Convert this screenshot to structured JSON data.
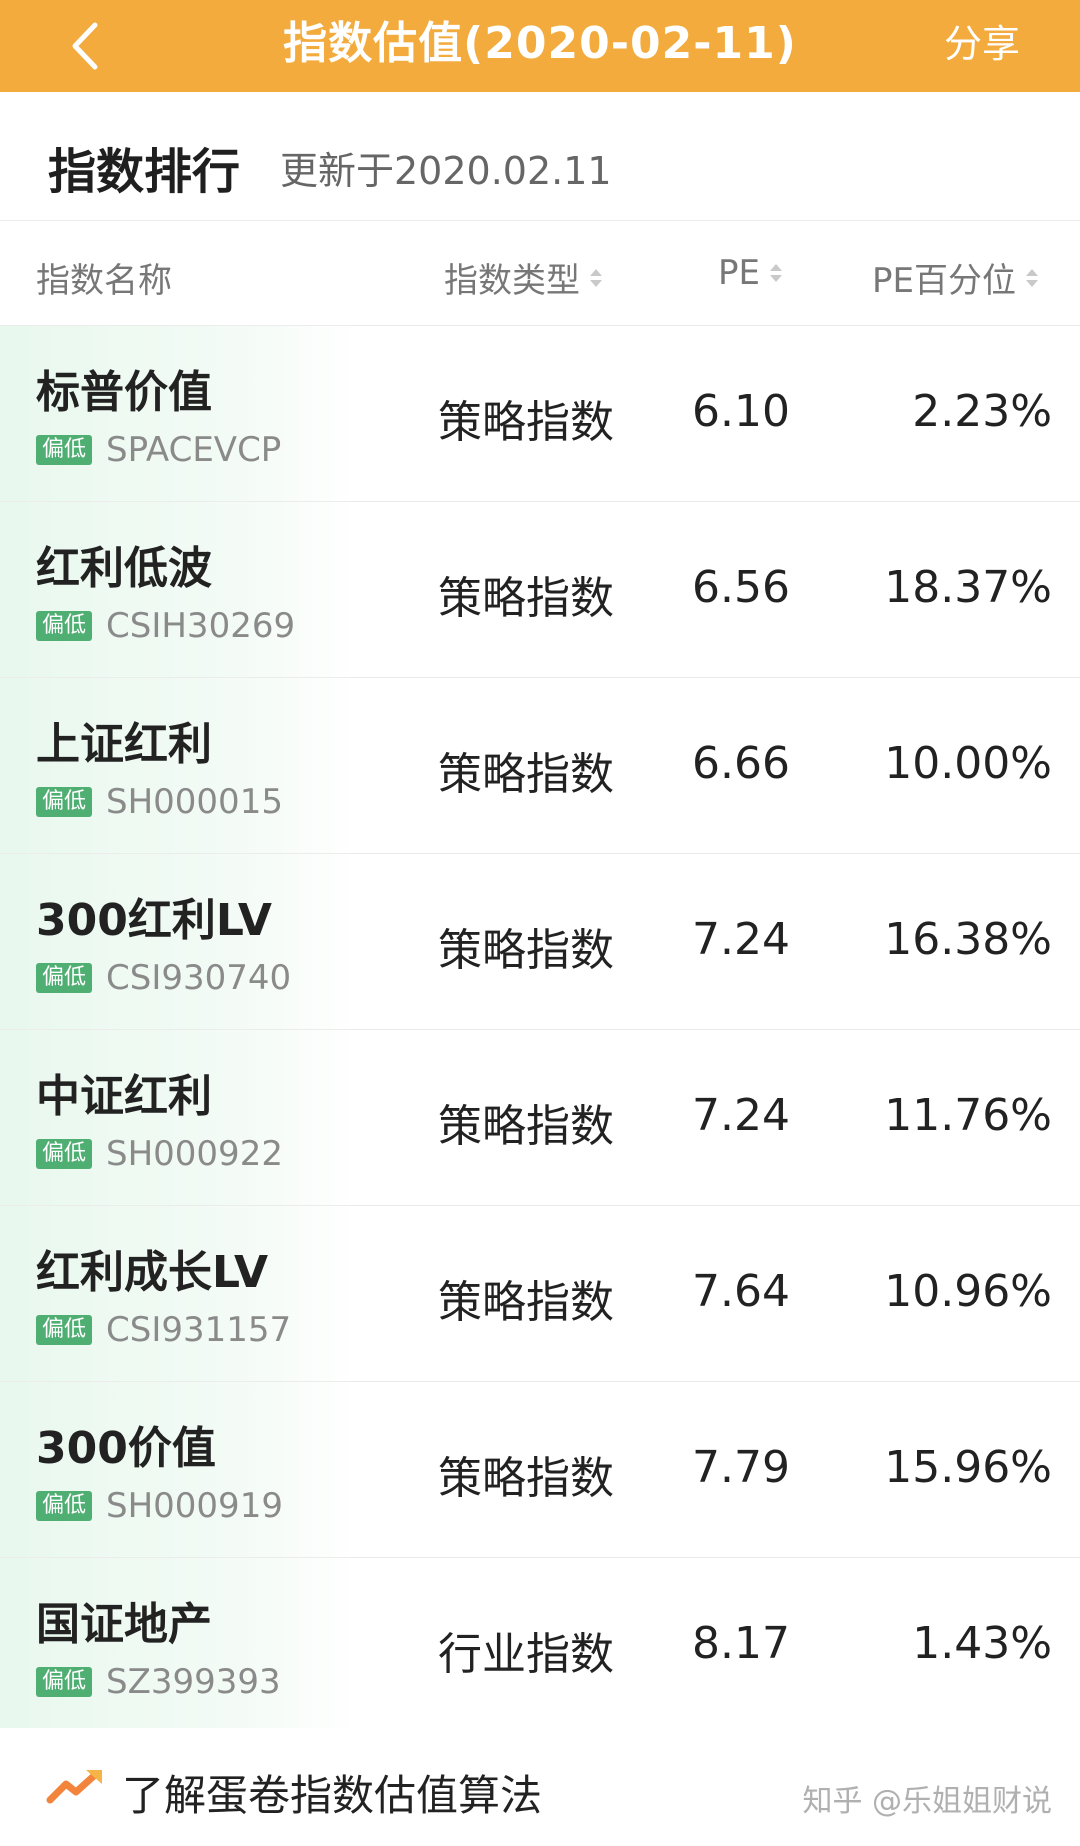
{
  "nav": {
    "title": "指数估值(2020-02-11)",
    "share_label": "分享",
    "back_icon": "chevron-left-icon",
    "background": "#f2ab3c"
  },
  "section": {
    "title": "指数排行",
    "update_text": "更新于2020.02.11"
  },
  "columns": {
    "name": "指数名称",
    "type": "指数类型",
    "pe": "PE",
    "pe_percentile": "PE百分位"
  },
  "rows": [
    {
      "name": "标普价值",
      "badge": "偏低",
      "code": "SPACEVCP",
      "type": "策略指数",
      "pe": "6.10",
      "pct": "2.23%"
    },
    {
      "name": "红利低波",
      "badge": "偏低",
      "code": "CSIH30269",
      "type": "策略指数",
      "pe": "6.56",
      "pct": "18.37%"
    },
    {
      "name": "上证红利",
      "badge": "偏低",
      "code": "SH000015",
      "type": "策略指数",
      "pe": "6.66",
      "pct": "10.00%"
    },
    {
      "name": "300红利LV",
      "badge": "偏低",
      "code": "CSI930740",
      "type": "策略指数",
      "pe": "7.24",
      "pct": "16.38%"
    },
    {
      "name": "中证红利",
      "badge": "偏低",
      "code": "SH000922",
      "type": "策略指数",
      "pe": "7.24",
      "pct": "11.76%"
    },
    {
      "name": "红利成长LV",
      "badge": "偏低",
      "code": "CSI931157",
      "type": "策略指数",
      "pe": "7.64",
      "pct": "10.96%"
    },
    {
      "name": "300价值",
      "badge": "偏低",
      "code": "SH000919",
      "type": "策略指数",
      "pe": "7.79",
      "pct": "15.96%"
    },
    {
      "name": "国证地产",
      "badge": "偏低",
      "code": "SZ399393",
      "type": "行业指数",
      "pe": "8.17",
      "pct": "1.43%"
    }
  ],
  "footer": {
    "link_label": "了解蛋卷指数估值算法",
    "watermark": "知乎 @乐姐姐财说"
  },
  "colors": {
    "accent_orange": "#f2ab3c",
    "badge_green": "#4fae72"
  }
}
